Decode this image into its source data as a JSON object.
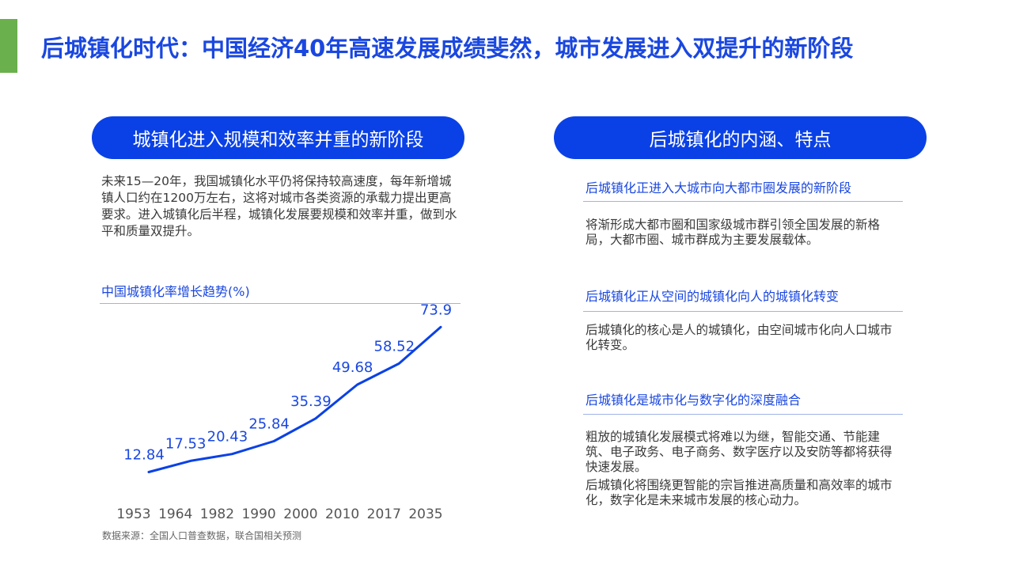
{
  "header": {
    "title": "后城镇化时代：中国经济40年高速发展成绩斐然，城市发展进入双提升的新阶段",
    "accent_color": "#6ab04c",
    "title_color": "#1a47e0"
  },
  "left": {
    "pill_label": "城镇化进入规模和效率并重的新阶段",
    "intro": "未来15—20年，我国城镇化水平仍将保持较高速度，每年新增城镇人口约在1200万左右，这将对城市各类资源的承载力提出更高要求。进入城镇化后半程，城镇化发展要规模和效率并重，做到水平和质量双提升。",
    "source": "数据来源：全国人口普查数据，联合国相关预测"
  },
  "right": {
    "pill_label": "后城镇化的内涵、特点",
    "sections": [
      {
        "heading": "后城镇化正进入大城市向大都市圈发展的新阶段",
        "body": [
          "将渐形成大都市圈和国家级城市群引领全国发展的新格局，大都市圈、城市群成为主要发展载体。"
        ]
      },
      {
        "heading": "后城镇化正从空间的城镇化向人的城镇化转变",
        "body": [
          "后城镇化的核心是人的城镇化，由空间城市化向人口城市化转变。"
        ]
      },
      {
        "heading": "后城镇化是城市化与数字化的深度融合",
        "body": [
          "粗放的城镇化发展模式将难以为继，智能交通、节能建筑、电子政务、电子商务、数字医疗以及安防等都将获得快速发展。",
          "后城镇化将围绕更智能的宗旨推进高质量和高效率的城市化，数字化是未来城市发展的核心动力。"
        ]
      }
    ]
  },
  "chart_data": {
    "type": "line",
    "title": "中国城镇化率增长趋势(%)",
    "categories": [
      "1953",
      "1964",
      "1982",
      "1990",
      "2000",
      "2010",
      "2017",
      "2035"
    ],
    "series": [
      {
        "values": [
          12.84,
          17.53,
          20.43,
          25.84,
          35.39,
          49.68,
          58.52,
          73.9
        ]
      }
    ],
    "value_labels": [
      "12.84",
      "17.53",
      "20.43",
      "25.84",
      "35.39",
      "49.68",
      "58.52",
      "73.9"
    ],
    "ylim": [
      0,
      80
    ],
    "grid": false,
    "line_color": "#0a41e6",
    "label_color": "#1a47e0"
  }
}
